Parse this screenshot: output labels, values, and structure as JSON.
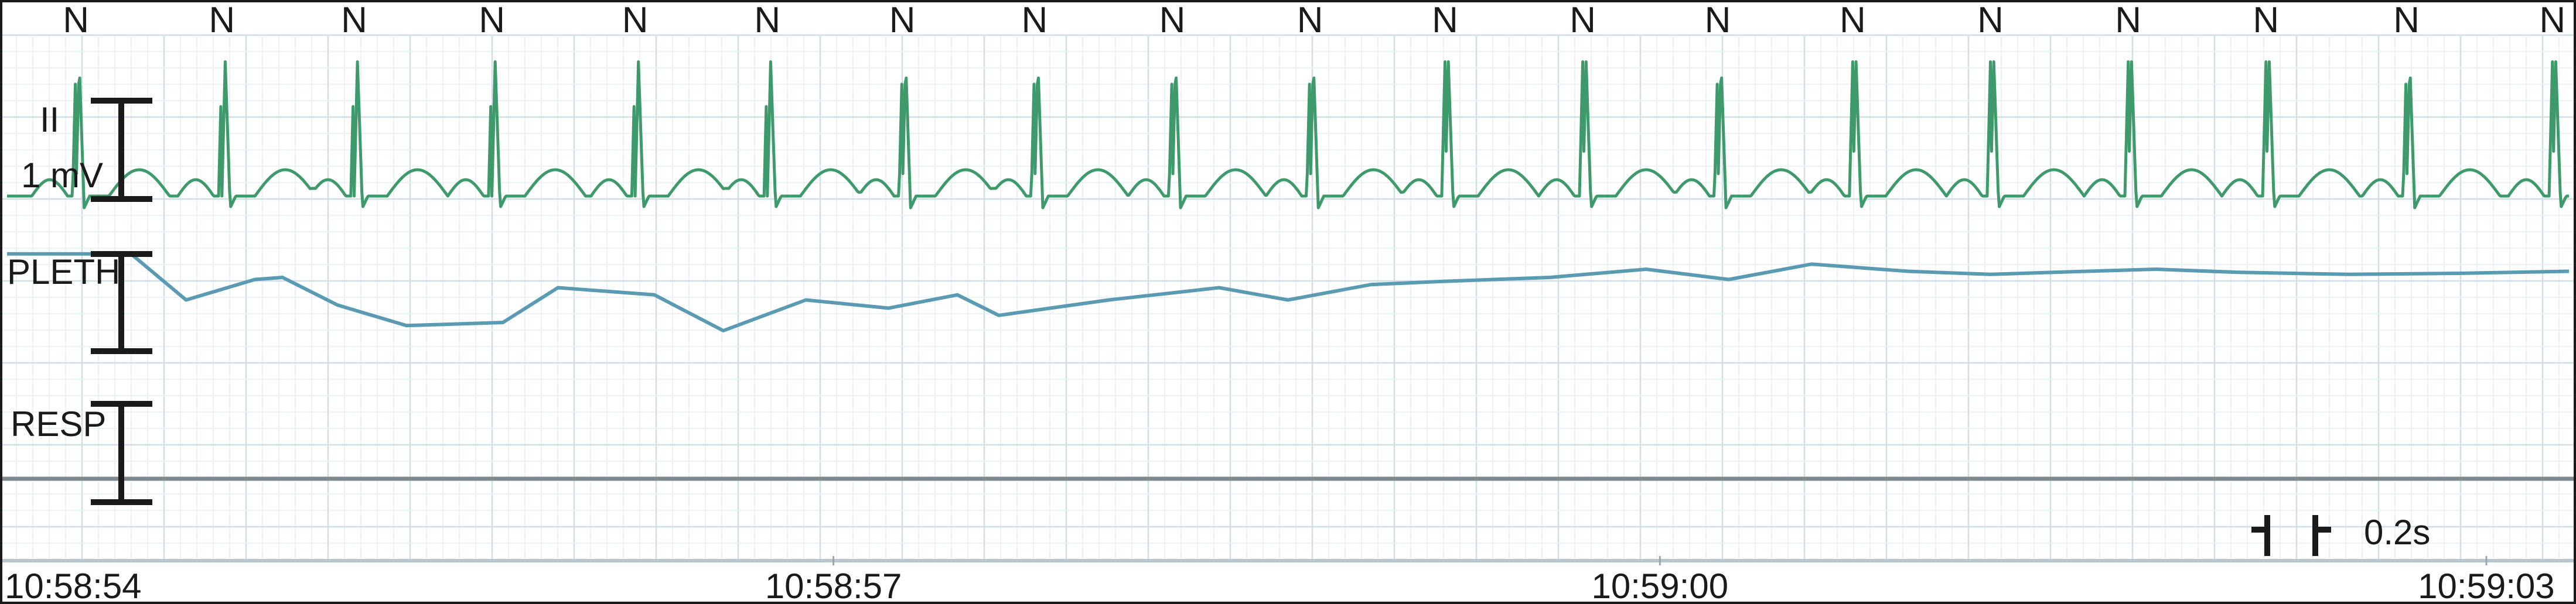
{
  "monitor": {
    "beat_annotations": [
      "N",
      "N",
      "N",
      "N",
      "N",
      "N",
      "N",
      "N",
      "N",
      "N",
      "N",
      "N",
      "N",
      "N",
      "N",
      "N",
      "N",
      "N",
      "N"
    ],
    "leads": {
      "ecg": "II",
      "ecg_scale": "1 mV",
      "pleth": "PLETH",
      "resp": "RESP"
    },
    "time_scale_label": "0.2s",
    "timestamps": [
      "10:58:54",
      "10:58:57",
      "10:59:00",
      "10:59:03"
    ],
    "colors": {
      "ecg": "#3e9a6a",
      "pleth": "#5a9bb3",
      "resp": "#7f8a90",
      "grid_minor": "#e6eff3",
      "grid_major": "#cfdfe6",
      "frame": "#1a1a1a"
    }
  },
  "chart_data": {
    "type": "line",
    "title": "",
    "xlabel": "",
    "ylabel": "",
    "x_range_s": [
      0,
      9.3
    ],
    "x_ticks": [
      {
        "t_s": 0,
        "label": "10:58:54"
      },
      {
        "t_s": 3,
        "label": "10:58:57"
      },
      {
        "t_s": 6,
        "label": "10:59:00"
      },
      {
        "t_s": 9,
        "label": "10:59:03"
      }
    ],
    "series": [
      {
        "name": "II",
        "beat_times_s": [
          0.25,
          0.78,
          1.26,
          1.76,
          2.28,
          2.76,
          3.25,
          3.73,
          4.23,
          4.73,
          5.22,
          5.72,
          6.21,
          6.7,
          7.2,
          7.7,
          8.2,
          8.71,
          9.24
        ],
        "r_amplitude_mV": 0.85
      },
      {
        "name": "PLETH",
        "x_s": [
          0,
          0.45,
          0.65,
          0.9,
          1.0,
          1.2,
          1.45,
          1.8,
          2.0,
          2.35,
          2.6,
          2.9,
          3.2,
          3.45,
          3.6,
          4.0,
          4.4,
          4.65,
          4.95,
          5.2,
          5.6,
          5.95,
          6.25,
          6.55,
          6.9,
          7.2,
          7.55,
          7.8,
          8.1,
          8.5,
          8.9,
          9.3
        ],
        "y": [
          0.95,
          0.95,
          0.5,
          0.7,
          0.72,
          0.45,
          0.25,
          0.28,
          0.62,
          0.55,
          0.2,
          0.5,
          0.42,
          0.55,
          0.35,
          0.5,
          0.62,
          0.5,
          0.65,
          0.68,
          0.72,
          0.8,
          0.7,
          0.85,
          0.78,
          0.75,
          0.78,
          0.8,
          0.77,
          0.75,
          0.76,
          0.78
        ]
      },
      {
        "name": "RESP",
        "x_s": [
          0,
          9.3
        ],
        "y": [
          0,
          0
        ]
      }
    ],
    "grid": true,
    "legend": "none"
  }
}
